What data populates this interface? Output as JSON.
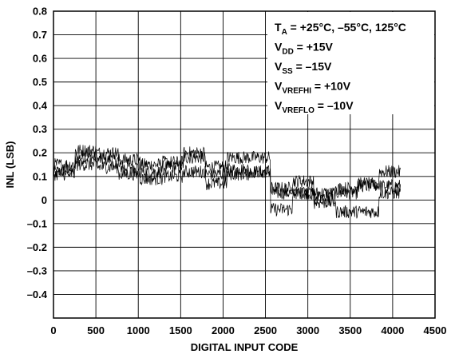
{
  "chart_data": {
    "type": "line",
    "title": "",
    "xlabel": "DIGITAL INPUT CODE",
    "ylabel": "INL (LSB)",
    "xlim": [
      0,
      4500
    ],
    "ylim": [
      -0.5,
      0.8
    ],
    "x_ticks": [
      "0",
      "500",
      "1000",
      "1500",
      "2000",
      "2500",
      "3000",
      "3500",
      "4000",
      "4500"
    ],
    "y_ticks": [
      "0.8",
      "0.7",
      "0.6",
      "0.5",
      "0.4",
      "0.3",
      "0.2",
      "0.1",
      "0",
      "–0.1",
      "–0.2",
      "–0.3",
      "–0.4"
    ],
    "grid": true,
    "legend_position": "top-right",
    "annotation": [
      {
        "main": "T",
        "sub": "A",
        "rest": " = +25°C, –55°C, 125°C"
      },
      {
        "main": "V",
        "sub": "DD",
        "rest": " = +15V"
      },
      {
        "main": "V",
        "sub": "SS",
        "rest": " = –15V"
      },
      {
        "main": "V",
        "sub": "VREFHI",
        "rest": " = +10V"
      },
      {
        "main": "V",
        "sub": "VREFLO",
        "rest": " = –10V"
      }
    ],
    "x_max_code": 4095,
    "segment_length": 256,
    "series": [
      {
        "values": [
          0.12,
          0.18,
          0.17,
          0.14,
          0.15,
          0.14,
          0.18,
          0.14,
          0.13,
          0.12,
          0.03,
          0.03,
          0.03,
          0.03,
          0.07,
          0.06
        ]
      },
      {
        "values": [
          0.15,
          0.21,
          0.2,
          0.17,
          0.12,
          0.16,
          0.2,
          0.11,
          0.18,
          0.18,
          0.05,
          0.08,
          0.01,
          0.05,
          0.06,
          0.12
        ]
      },
      {
        "values": [
          0.11,
          0.15,
          0.14,
          0.11,
          0.09,
          0.1,
          0.12,
          0.07,
          0.11,
          0.12,
          -0.04,
          0.03,
          -0.01,
          -0.05,
          -0.05,
          0.03
        ]
      }
    ],
    "noise": 0.028,
    "colors": {
      "line": "#000000",
      "grid": "#000000"
    }
  }
}
